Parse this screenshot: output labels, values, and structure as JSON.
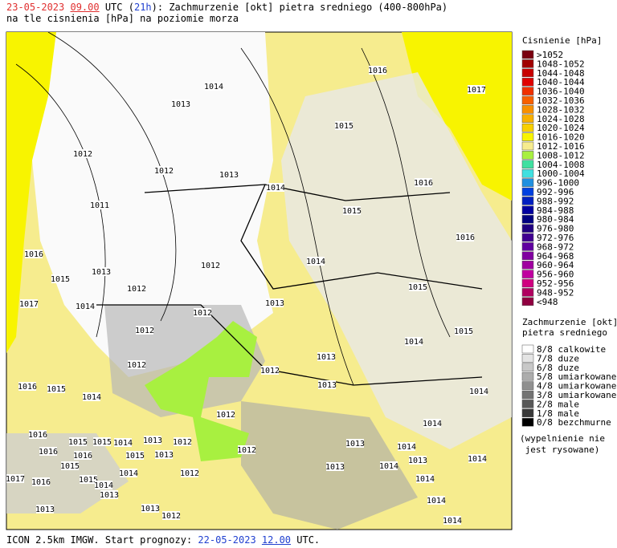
{
  "header": {
    "line1": [
      {
        "text": "23-05-2023",
        "color": "#e03030"
      },
      {
        "text": " "
      },
      {
        "text": "09.00",
        "color": "#e03030",
        "underline": true
      },
      {
        "text": " UTC ("
      },
      {
        "text": "21h",
        "color": "#2040d0"
      },
      {
        "text": "): Zachmurzenie [okt] pietra sredniego (400-800hPa)"
      }
    ],
    "subtitle": "na tle cisnienia [hPa] na poziomie morza"
  },
  "isobar_labels": [
    "1016",
    "1014",
    "1013",
    "1017",
    "1015",
    "1012",
    "1012",
    "1013",
    "1014",
    "1016",
    "1011",
    "1015",
    "1016",
    "1016",
    "1012",
    "1014",
    "1013",
    "1015",
    "1012",
    "1015",
    "1017",
    "1014",
    "1013",
    "1012",
    "1012",
    "1015",
    "1014",
    "1013",
    "1012",
    "1012",
    "1013",
    "1016",
    "1015",
    "1014",
    "1014",
    "1012",
    "1014",
    "1016",
    "1015",
    "1015",
    "1014",
    "1013",
    "1012",
    "1013",
    "1014",
    "1012",
    "1016",
    "1016",
    "1015",
    "1013",
    "1015",
    "1014",
    "1012",
    "1013",
    "1014",
    "1013",
    "1014",
    "1017",
    "1016",
    "1015",
    "1014",
    "1014",
    "1013",
    "1013",
    "1014",
    "1013",
    "1014",
    "1012"
  ],
  "pressure_legend": {
    "title": "Cisnienie [hPa]",
    "items": [
      {
        "label": ">1052",
        "color": "#7a0010"
      },
      {
        "label": "1048-1052",
        "color": "#a00000"
      },
      {
        "label": "1044-1048",
        "color": "#c80000"
      },
      {
        "label": "1040-1044",
        "color": "#e00000"
      },
      {
        "label": "1036-1040",
        "color": "#f03000"
      },
      {
        "label": "1032-1036",
        "color": "#f86000"
      },
      {
        "label": "1028-1032",
        "color": "#f89000"
      },
      {
        "label": "1024-1028",
        "color": "#f8b000"
      },
      {
        "label": "1020-1024",
        "color": "#f8d000"
      },
      {
        "label": "1016-1020",
        "color": "#f8f400"
      },
      {
        "label": "1012-1016",
        "color": "#f6ec8e"
      },
      {
        "label": "1008-1012",
        "color": "#a8f040"
      },
      {
        "label": "1004-1008",
        "color": "#40e0a0"
      },
      {
        "label": "1000-1004",
        "color": "#40e0e0"
      },
      {
        "label": "996-1000",
        "color": "#2090e0"
      },
      {
        "label": "992-996",
        "color": "#0040e0"
      },
      {
        "label": "988-992",
        "color": "#0020c0"
      },
      {
        "label": "984-988",
        "color": "#0000a0"
      },
      {
        "label": "980-984",
        "color": "#000080"
      },
      {
        "label": "976-980",
        "color": "#200080"
      },
      {
        "label": "972-976",
        "color": "#400090"
      },
      {
        "label": "968-972",
        "color": "#6000a0"
      },
      {
        "label": "964-968",
        "color": "#8000a0"
      },
      {
        "label": "960-964",
        "color": "#a000a0"
      },
      {
        "label": "956-960",
        "color": "#c000a0"
      },
      {
        "label": "952-956",
        "color": "#d00080"
      },
      {
        "label": "948-952",
        "color": "#b00060"
      },
      {
        "label": "<948",
        "color": "#900040"
      }
    ]
  },
  "cloud_legend": {
    "title": [
      "Zachmurzenie [okt]",
      "pietra sredniego"
    ],
    "items": [
      {
        "label": "8/8 calkowite",
        "color": "#ffffff"
      },
      {
        "label": "7/8 duze",
        "color": "#e4e4e4"
      },
      {
        "label": "6/8 duze",
        "color": "#c8c8c8"
      },
      {
        "label": "5/8 umiarkowane",
        "color": "#acacac"
      },
      {
        "label": "4/8 umiarkowane",
        "color": "#909090"
      },
      {
        "label": "3/8 umiarkowane",
        "color": "#747474"
      },
      {
        "label": "2/8 male",
        "color": "#585858"
      },
      {
        "label": "1/8 male",
        "color": "#383838"
      },
      {
        "label": "0/8 bezchmurne",
        "color": "#000000"
      }
    ],
    "note": [
      "(wypelnienie nie",
      "jest rysowane)"
    ]
  },
  "footer": [
    {
      "text": "ICON 2.5km IMGW. Start prognozy: "
    },
    {
      "text": "22-05-2023",
      "color": "#2040d0"
    },
    {
      "text": " "
    },
    {
      "text": "12.00",
      "color": "#2040d0",
      "underline": true
    },
    {
      "text": " UTC."
    }
  ]
}
